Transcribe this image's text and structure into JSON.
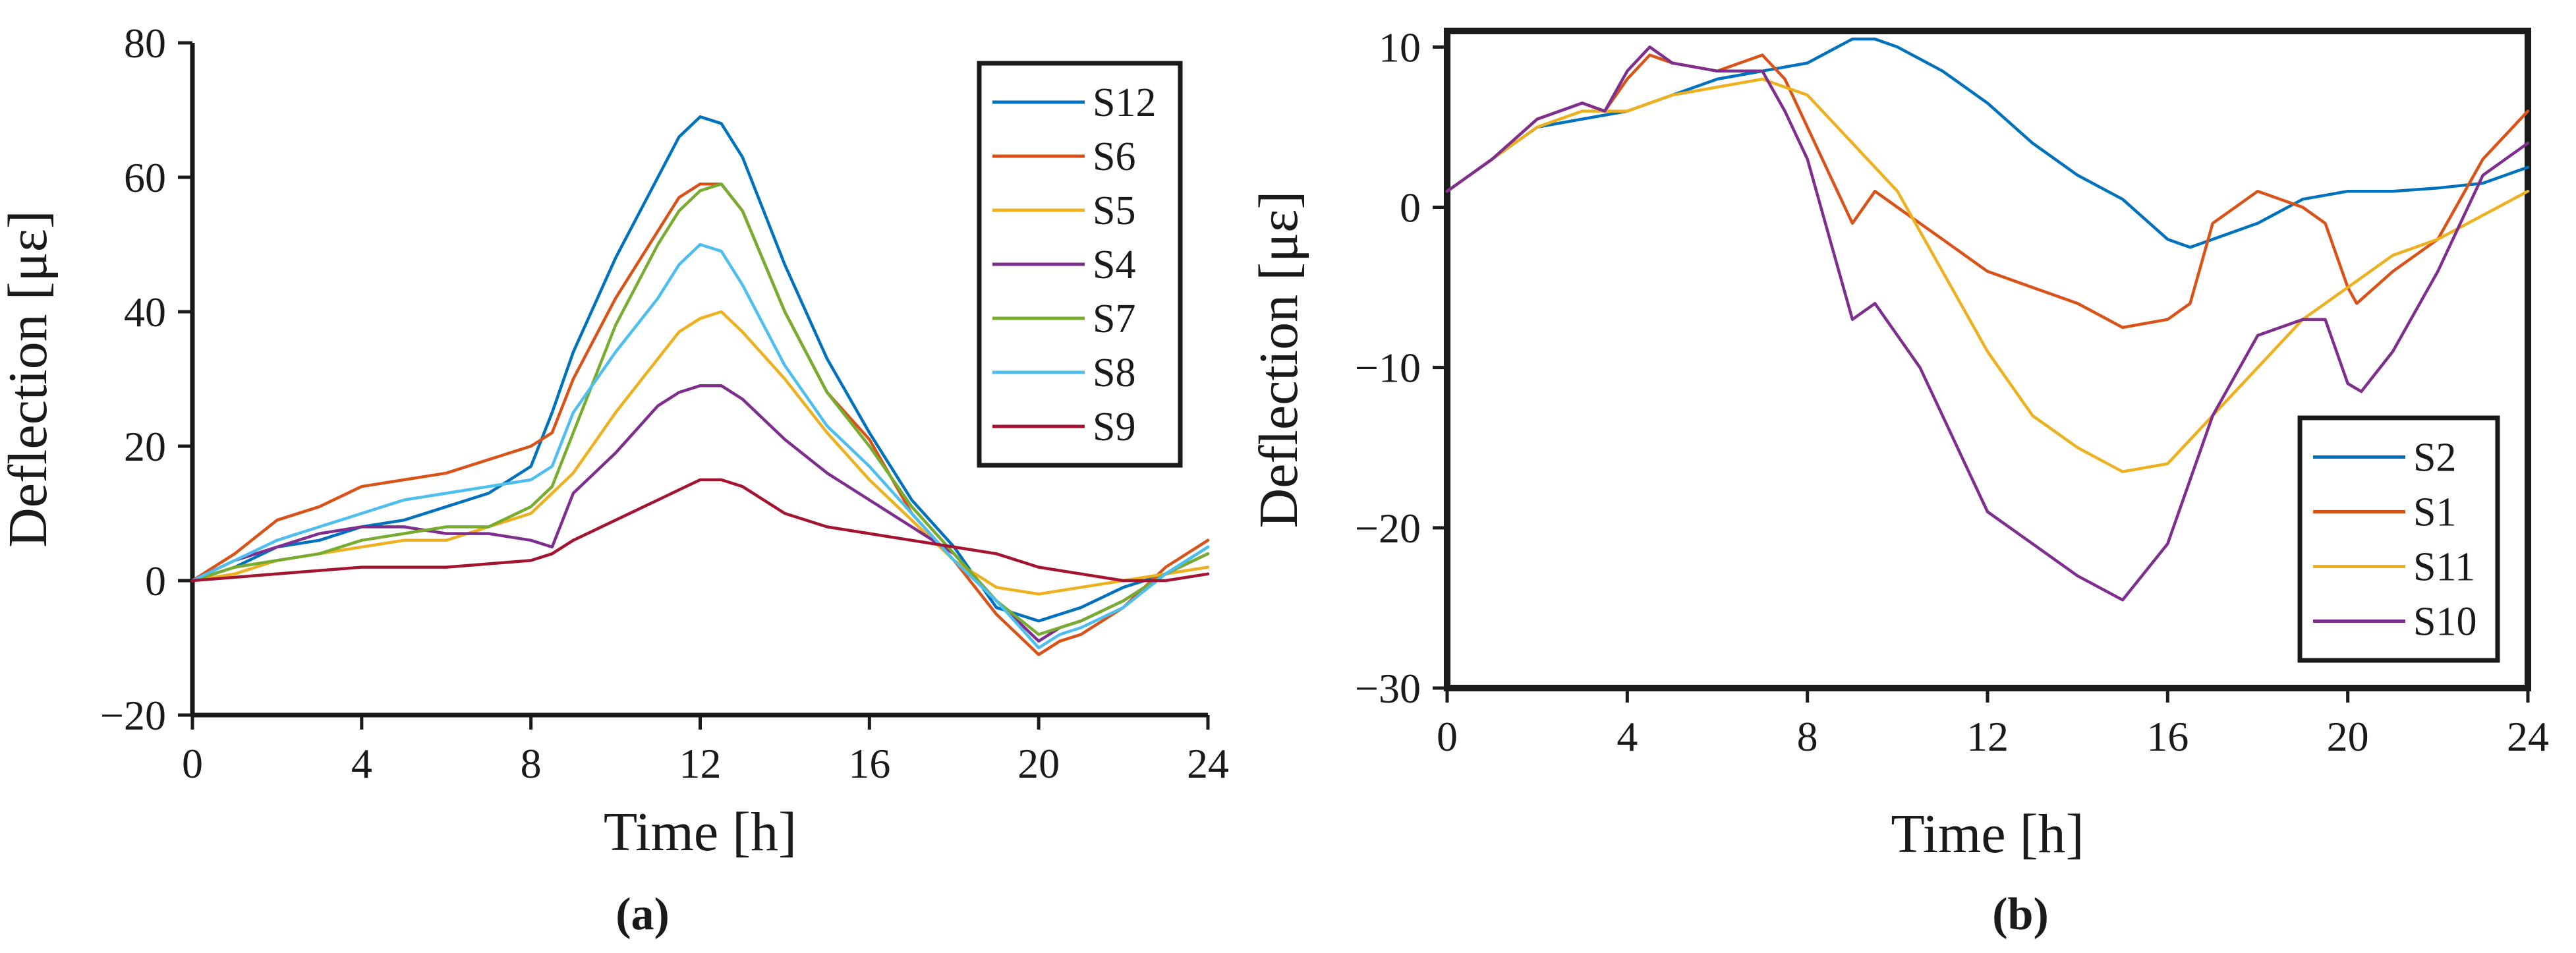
{
  "chart_data": [
    {
      "type": "line",
      "panel_label": "(a)",
      "xlabel": "Time [h]",
      "ylabel": "Deflection [με]",
      "xlim": [
        0,
        24
      ],
      "ylim": [
        -20,
        80
      ],
      "xticks": [
        0,
        4,
        8,
        12,
        16,
        20,
        24
      ],
      "yticks": [
        -20,
        0,
        20,
        40,
        60,
        80
      ],
      "ytick_labels": [
        "−20",
        "0",
        "20",
        "40",
        "60",
        "80"
      ],
      "legend_position": "top-right",
      "series": [
        {
          "name": "S12",
          "color": "#0072BD",
          "x": [
            0,
            1,
            2,
            3,
            4,
            5,
            6,
            7,
            8,
            8.5,
            9,
            10,
            11,
            11.5,
            12,
            12.5,
            13,
            14,
            15,
            16,
            17,
            18,
            19,
            20,
            20.5,
            21,
            22,
            23,
            24
          ],
          "y": [
            0,
            2,
            5,
            6,
            8,
            9,
            11,
            13,
            17,
            25,
            34,
            48,
            60,
            66,
            69,
            68,
            63,
            47,
            33,
            22,
            12,
            5,
            -4,
            -6,
            -5,
            -4,
            -1,
            1,
            5
          ]
        },
        {
          "name": "S6",
          "color": "#D95319",
          "x": [
            0,
            1,
            2,
            3,
            4,
            5,
            6,
            7,
            8,
            8.5,
            9,
            10,
            11,
            11.5,
            12,
            12.5,
            13,
            14,
            15,
            16,
            17,
            18,
            19,
            20,
            20.5,
            21,
            22,
            23,
            24
          ],
          "y": [
            0,
            4,
            9,
            11,
            14,
            15,
            16,
            18,
            20,
            22,
            30,
            42,
            52,
            57,
            59,
            59,
            55,
            40,
            28,
            21,
            10,
            3,
            -5,
            -11,
            -9,
            -8,
            -4,
            2,
            6
          ]
        },
        {
          "name": "S5",
          "color": "#EDB120",
          "x": [
            0,
            1,
            2,
            3,
            4,
            5,
            6,
            7,
            8,
            9,
            10,
            11,
            11.5,
            12,
            12.5,
            13,
            14,
            15,
            16,
            17,
            18,
            19,
            20,
            21,
            22,
            23,
            24
          ],
          "y": [
            0,
            1,
            3,
            4,
            5,
            6,
            6,
            8,
            10,
            16,
            25,
            33,
            37,
            39,
            40,
            37,
            30,
            22,
            15,
            9,
            3,
            -1,
            -2,
            -1,
            0,
            1,
            2
          ]
        },
        {
          "name": "S4",
          "color": "#7E2F8E",
          "x": [
            0,
            1,
            2,
            3,
            4,
            5,
            6,
            7,
            8,
            8.5,
            9,
            10,
            11,
            11.5,
            12,
            12.5,
            13,
            14,
            15,
            16,
            17,
            18,
            19,
            20,
            20.5,
            21,
            22,
            23,
            24
          ],
          "y": [
            0,
            3,
            5,
            7,
            8,
            8,
            7,
            7,
            6,
            5,
            13,
            19,
            26,
            28,
            29,
            29,
            27,
            21,
            16,
            12,
            8,
            4,
            -3,
            -9,
            -7,
            -6,
            -3,
            1,
            4
          ]
        },
        {
          "name": "S7",
          "color": "#77AC30",
          "x": [
            0,
            1,
            2,
            3,
            4,
            5,
            6,
            7,
            8,
            8.5,
            9,
            10,
            11,
            11.5,
            12,
            12.5,
            13,
            14,
            15,
            16,
            17,
            18,
            19,
            20,
            20.5,
            21,
            22,
            23,
            24
          ],
          "y": [
            0,
            2,
            3,
            4,
            6,
            7,
            8,
            8,
            11,
            14,
            22,
            38,
            50,
            55,
            58,
            59,
            55,
            40,
            28,
            20,
            11,
            4,
            -3,
            -8,
            -7,
            -6,
            -3,
            1,
            4
          ]
        },
        {
          "name": "S8",
          "color": "#4DBEEE",
          "x": [
            0,
            1,
            2,
            3,
            4,
            5,
            6,
            7,
            8,
            8.5,
            9,
            10,
            11,
            11.5,
            12,
            12.5,
            13,
            14,
            15,
            16,
            17,
            18,
            19,
            20,
            20.5,
            21,
            22,
            23,
            24
          ],
          "y": [
            0,
            3,
            6,
            8,
            10,
            12,
            13,
            14,
            15,
            17,
            25,
            34,
            42,
            47,
            50,
            49,
            44,
            32,
            23,
            17,
            10,
            3,
            -3,
            -10,
            -8,
            -7,
            -4,
            1,
            5
          ]
        },
        {
          "name": "S9",
          "color": "#A2142F",
          "x": [
            0,
            2,
            4,
            6,
            8,
            8.5,
            9,
            10,
            11,
            12,
            12.5,
            13,
            14,
            15,
            16,
            17,
            18,
            19,
            20,
            21,
            22,
            23,
            24
          ],
          "y": [
            0,
            1,
            2,
            2,
            3,
            4,
            6,
            9,
            12,
            15,
            15,
            14,
            10,
            8,
            7,
            6,
            5,
            4,
            2,
            1,
            0,
            0,
            1
          ]
        }
      ]
    },
    {
      "type": "line",
      "panel_label": "(b)",
      "xlabel": "Time [h]",
      "ylabel": "Deflection [με]",
      "xlim": [
        0,
        24
      ],
      "ylim": [
        -30,
        11
      ],
      "xticks": [
        0,
        4,
        8,
        12,
        16,
        20,
        24
      ],
      "yticks": [
        -30,
        -20,
        -10,
        0,
        10
      ],
      "ytick_labels": [
        "−30",
        "−20",
        "−10",
        "0",
        "10"
      ],
      "legend_position": "bottom-right",
      "series": [
        {
          "name": "S2",
          "color": "#0072BD",
          "x": [
            0,
            1,
            2,
            3,
            4,
            5,
            6,
            7,
            8,
            9,
            9.5,
            10,
            11,
            12,
            13,
            14,
            15,
            16,
            16.5,
            17,
            18,
            19,
            20,
            21,
            22,
            23,
            24
          ],
          "y": [
            1,
            3,
            5,
            5.5,
            6,
            7,
            8,
            8.5,
            9,
            10.5,
            10.5,
            10,
            8.5,
            6.5,
            4,
            2,
            0.5,
            -2,
            -2.5,
            -2,
            -1,
            0.5,
            1,
            1,
            1.2,
            1.5,
            2.5
          ]
        },
        {
          "name": "S1",
          "color": "#D95319",
          "x": [
            0,
            1,
            2,
            3,
            3.5,
            4,
            4.5,
            5,
            6,
            7,
            7.5,
            8,
            8.5,
            9,
            9.5,
            10,
            10.5,
            11,
            11.5,
            12,
            13,
            14,
            15,
            16,
            16.5,
            17,
            18,
            19,
            19.5,
            20,
            20.2,
            21,
            22,
            23,
            24
          ],
          "y": [
            1,
            3,
            5.5,
            6.5,
            6,
            8,
            9.5,
            9,
            8.5,
            9.5,
            8,
            5,
            2,
            -1,
            1,
            0,
            -1,
            -2,
            -3,
            -4,
            -5,
            -6,
            -7.5,
            -7,
            -6,
            -1,
            1,
            0,
            -1,
            -5,
            -6,
            -4,
            -2,
            3,
            6
          ]
        },
        {
          "name": "S11",
          "color": "#EDB120",
          "x": [
            0,
            1,
            2,
            3,
            4,
            5,
            6,
            7,
            8,
            9,
            10,
            11,
            12,
            13,
            14,
            15,
            16,
            17,
            18,
            19,
            20,
            21,
            22,
            23,
            24
          ],
          "y": [
            1,
            3,
            5,
            6,
            6,
            7,
            7.5,
            8,
            7,
            4,
            1,
            -4,
            -9,
            -13,
            -15,
            -16.5,
            -16,
            -13,
            -10,
            -7,
            -5,
            -3,
            -2,
            -0.5,
            1
          ]
        },
        {
          "name": "S10",
          "color": "#7E2F8E",
          "x": [
            0,
            1,
            2,
            3,
            3.5,
            4,
            4.5,
            5,
            6,
            7,
            7.5,
            8,
            8.5,
            9,
            9.5,
            10,
            10.5,
            11,
            11.5,
            12,
            13,
            14,
            15,
            16,
            17,
            18,
            19,
            19.5,
            20,
            20.3,
            21,
            22,
            23,
            24
          ],
          "y": [
            1,
            3,
            5.5,
            6.5,
            6,
            8.5,
            10,
            9,
            8.5,
            8.5,
            6,
            3,
            -2,
            -7,
            -6,
            -8,
            -10,
            -13,
            -16,
            -19,
            -21,
            -23,
            -24.5,
            -21,
            -13,
            -8,
            -7,
            -7,
            -11,
            -11.5,
            -9,
            -4,
            2,
            4
          ]
        }
      ]
    }
  ]
}
